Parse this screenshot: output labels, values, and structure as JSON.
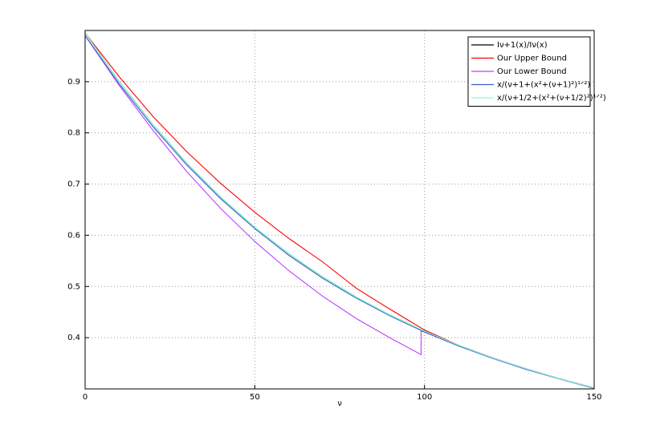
{
  "chart_data": {
    "type": "line",
    "xlabel": "ν",
    "x": [
      0,
      10,
      20,
      30,
      40,
      50,
      60,
      70,
      80,
      90,
      100,
      110,
      120,
      130,
      140,
      150
    ],
    "xlim": [
      0,
      150
    ],
    "ylim": [
      0.3,
      1.0
    ],
    "xticks": [
      0,
      50,
      100,
      150
    ],
    "yticks": [
      0.4,
      0.5,
      0.6,
      0.7,
      0.8,
      0.9
    ],
    "grid": true,
    "legend": "upper right",
    "series": [
      {
        "name": "Iν+1(x)/Iν(x)",
        "color": "#000000",
        "values": [
          0.995,
          0.9005,
          0.8158,
          0.7405,
          0.6739,
          0.6153,
          0.5638,
          0.5185,
          0.4787,
          0.4437,
          0.4127,
          0.3853,
          0.3609,
          0.3391,
          0.3195,
          0.3019
        ]
      },
      {
        "name": "Our Upper Bound",
        "color": "#ff0000",
        "values": [
          0.995,
          0.91,
          0.832,
          0.763,
          0.701,
          0.645,
          0.594,
          0.548,
          0.496,
          0.455,
          0.415,
          0.3853,
          0.3609,
          0.3391,
          0.3195,
          0.3019
        ]
      },
      {
        "name": "Our Lower Bound",
        "color": "#bf3fff",
        "x": [
          0,
          10,
          20,
          30,
          40,
          50,
          60,
          70,
          80,
          90,
          99,
          99,
          100,
          110,
          120,
          130,
          140,
          150
        ],
        "values": [
          0.99,
          0.893,
          0.805,
          0.724,
          0.652,
          0.588,
          0.531,
          0.481,
          0.437,
          0.399,
          0.367,
          0.413,
          0.411,
          0.384,
          0.36,
          0.338,
          0.319,
          0.301
        ]
      },
      {
        "name": "x/(ν+1+(x²+(ν+1)²)¹ᐟ²)",
        "color": "#3a5fcd",
        "values": [
          0.99,
          0.896,
          0.812,
          0.737,
          0.671,
          0.613,
          0.561,
          0.516,
          0.477,
          0.442,
          0.411,
          0.384,
          0.36,
          0.338,
          0.319,
          0.301
        ]
      },
      {
        "name": "x/(ν+1/2+(x²+(ν+1/2)²)¹ᐟ²)",
        "color": "#7fffd4",
        "values": [
          0.995,
          0.9005,
          0.8158,
          0.7405,
          0.6739,
          0.6153,
          0.5638,
          0.5185,
          0.4787,
          0.4437,
          0.4127,
          0.3853,
          0.3609,
          0.3391,
          0.3195,
          0.3019
        ]
      }
    ]
  }
}
